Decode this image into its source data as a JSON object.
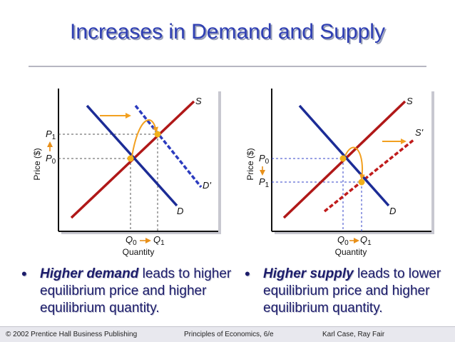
{
  "slide": {
    "title": "Increases in Demand and Supply"
  },
  "chart_data": [
    {
      "type": "line",
      "title": "",
      "xlabel": "Quantity",
      "ylabel": "Price ($)",
      "series": [
        {
          "name": "S",
          "points": [
            [
              0.05,
              0.05
            ],
            [
              0.95,
              0.95
            ]
          ],
          "color": "#b01818"
        },
        {
          "name": "D",
          "points": [
            [
              0.2,
              0.9
            ],
            [
              0.85,
              0.05
            ]
          ],
          "color": "#1c2c96"
        },
        {
          "name": "D'",
          "points": [
            [
              0.55,
              0.82
            ],
            [
              0.98,
              0.25
            ]
          ],
          "color": "#2b3bbf",
          "dashed": true
        }
      ],
      "equilibria": [
        {
          "q_label": "Q",
          "q_sub": "0",
          "p_label": "P",
          "p_sub": "0",
          "q": 0.495,
          "p": 0.495
        },
        {
          "q_label": "Q",
          "q_sub": "1",
          "p_label": "P",
          "p_sub": "1",
          "q": 0.665,
          "p": 0.665
        }
      ],
      "curve_labels": {
        "s": "S",
        "d": "D",
        "d_prime": "D'"
      },
      "shift": "demand-right"
    },
    {
      "type": "line",
      "title": "",
      "xlabel": "Quantity",
      "ylabel": "Price ($)",
      "series": [
        {
          "name": "S",
          "points": [
            [
              0.05,
              0.05
            ],
            [
              0.95,
              0.95
            ]
          ],
          "color": "#b01818"
        },
        {
          "name": "S'",
          "points": [
            [
              0.35,
              0.02
            ],
            [
              0.98,
              0.6
            ]
          ],
          "color": "#c01c1c",
          "dashed": true
        },
        {
          "name": "D",
          "points": [
            [
              0.2,
              0.92
            ],
            [
              0.85,
              0.05
            ]
          ],
          "color": "#1c2c96"
        }
      ],
      "equilibria": [
        {
          "q_label": "Q",
          "q_sub": "0",
          "p_label": "P",
          "p_sub": "0",
          "q": 0.495,
          "p": 0.495
        },
        {
          "q_label": "Q",
          "q_sub": "1",
          "p_label": "P",
          "p_sub": "1",
          "q": 0.645,
          "p": 0.345
        }
      ],
      "curve_labels": {
        "s": "S",
        "s_prime": "S'",
        "d": "D"
      },
      "shift": "supply-right"
    }
  ],
  "bullets": [
    {
      "highlight": "Higher demand",
      "rest": " leads to higher equilibrium price and higher equilibrium quantity."
    },
    {
      "highlight": "Higher supply",
      "rest": " leads to lower equilibrium price and higher equilibrium quantity."
    }
  ],
  "footer": {
    "left": "© 2002 Prentice Hall Business Publishing",
    "center": "Principles of Economics, 6/e",
    "right": "Karl Case, Ray Fair"
  },
  "colors": {
    "supply": "#b01818",
    "demand": "#1c2c96",
    "marker": "#f2b11a",
    "arrow": "#f2a020",
    "title": "#2f3fb3"
  }
}
